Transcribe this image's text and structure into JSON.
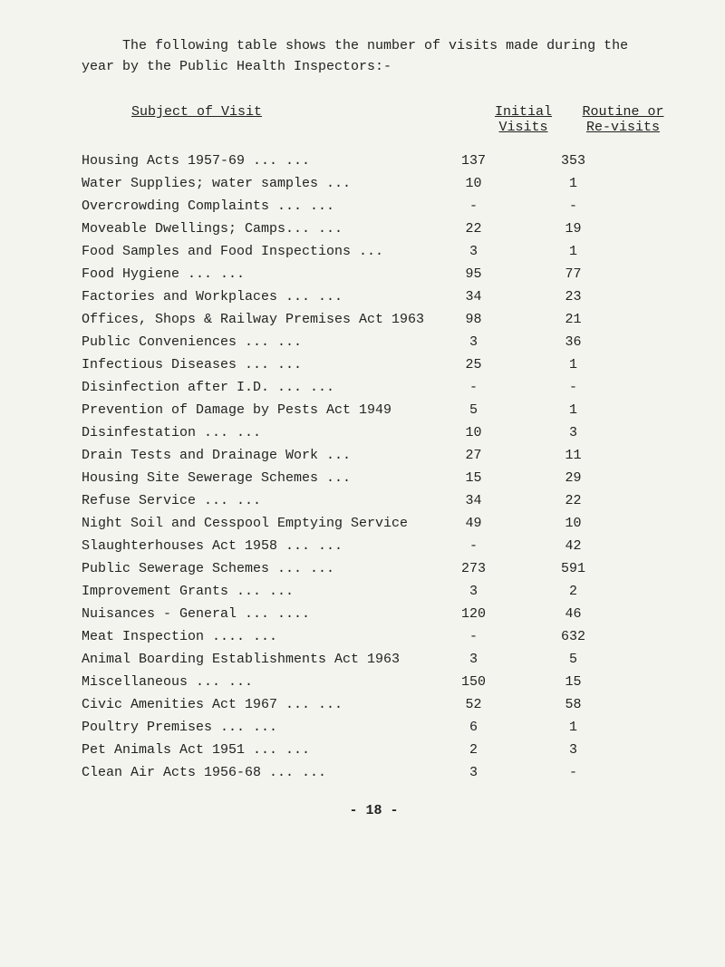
{
  "intro": "The following table shows the number of visits made during the year by the Public Health Inspectors:-",
  "headers": {
    "subject": "Subject of Visit",
    "initial_l1": "Initial",
    "initial_l2": "Visits",
    "routine_l1": "Routine or",
    "routine_l2": "Re-visits"
  },
  "rows": [
    {
      "subject": "Housing Acts 1957-69    ...     ...",
      "initial": "137",
      "routine": "353"
    },
    {
      "subject": "Water Supplies; water samples   ...",
      "initial": "10",
      "routine": "1"
    },
    {
      "subject": "Overcrowding Complaints  ...    ...",
      "initial": "-",
      "routine": "-"
    },
    {
      "subject": "Moveable Dwellings; Camps...    ...",
      "initial": "22",
      "routine": "19"
    },
    {
      "subject": "Food Samples and Food Inspections ...",
      "initial": "3",
      "routine": "1"
    },
    {
      "subject": "Food Hygiene            ...     ...",
      "initial": "95",
      "routine": "77"
    },
    {
      "subject": "Factories and Workplaces ...    ...",
      "initial": "34",
      "routine": "23"
    },
    {
      "subject": "Offices, Shops & Railway Premises Act 1963",
      "initial": "98",
      "routine": "21"
    },
    {
      "subject": "Public Conveniences     ...     ...",
      "initial": "3",
      "routine": "36"
    },
    {
      "subject": "Infectious Diseases     ...     ...",
      "initial": "25",
      "routine": "1"
    },
    {
      "subject": "Disinfection after I.D.  ...    ...",
      "initial": "-",
      "routine": "-"
    },
    {
      "subject": "Prevention of Damage by Pests Act 1949",
      "initial": "5",
      "routine": "1"
    },
    {
      "subject": "Disinfestation          ...     ...",
      "initial": "10",
      "routine": "3"
    },
    {
      "subject": "Drain Tests and Drainage Work   ...",
      "initial": "27",
      "routine": "11"
    },
    {
      "subject": "Housing Site Sewerage Schemes   ...",
      "initial": "15",
      "routine": "29"
    },
    {
      "subject": "Refuse Service          ...     ...",
      "initial": "34",
      "routine": "22"
    },
    {
      "subject": "Night Soil and Cesspool Emptying Service",
      "initial": "49",
      "routine": "10"
    },
    {
      "subject": "Slaughterhouses Act 1958 ...    ...",
      "initial": "-",
      "routine": "42"
    },
    {
      "subject": "Public Sewerage Schemes  ...    ...",
      "initial": "273",
      "routine": "591"
    },
    {
      "subject": "Improvement Grants      ...     ...",
      "initial": "3",
      "routine": "2"
    },
    {
      "subject": "Nuisances - General     ...    ....",
      "initial": "120",
      "routine": "46"
    },
    {
      "subject": "Meat Inspection         ....    ...",
      "initial": "-",
      "routine": "632"
    },
    {
      "subject": "Animal Boarding Establishments Act 1963",
      "initial": "3",
      "routine": "5"
    },
    {
      "subject": "Miscellaneous           ...     ...",
      "initial": "150",
      "routine": "15"
    },
    {
      "subject": "Civic Amenities Act 1967 ...    ...",
      "initial": "52",
      "routine": "58"
    },
    {
      "subject": "Poultry Premises        ...     ...",
      "initial": "6",
      "routine": "1"
    },
    {
      "subject": "Pet Animals Act 1951    ...     ...",
      "initial": "2",
      "routine": "3"
    },
    {
      "subject": "Clean Air Acts 1956-68  ...     ...",
      "initial": "3",
      "routine": "-"
    }
  ],
  "page_number": "- 18 -"
}
